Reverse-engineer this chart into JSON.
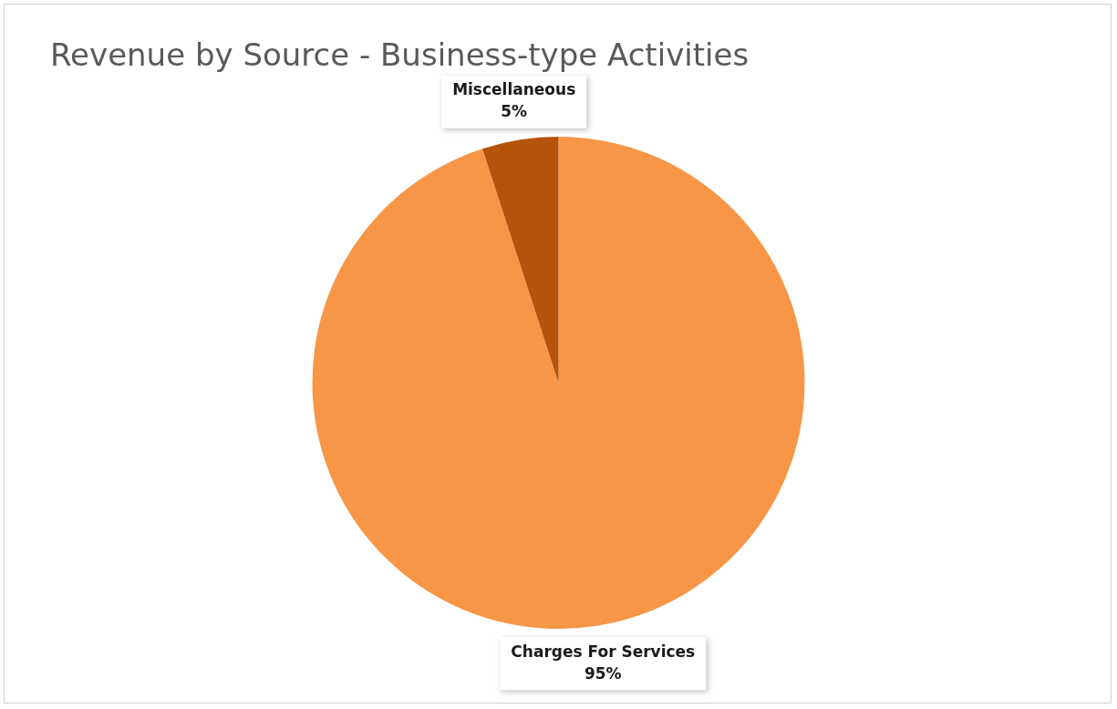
{
  "chart_data": {
    "type": "pie",
    "title": "Revenue by Source - Business-type Activities",
    "categories": [
      "Charges For Services",
      "Miscellaneous"
    ],
    "values": [
      95,
      5
    ],
    "value_labels": [
      "95%",
      "5%"
    ],
    "colors": [
      "#f79646",
      "#b45309"
    ],
    "legend": false
  }
}
